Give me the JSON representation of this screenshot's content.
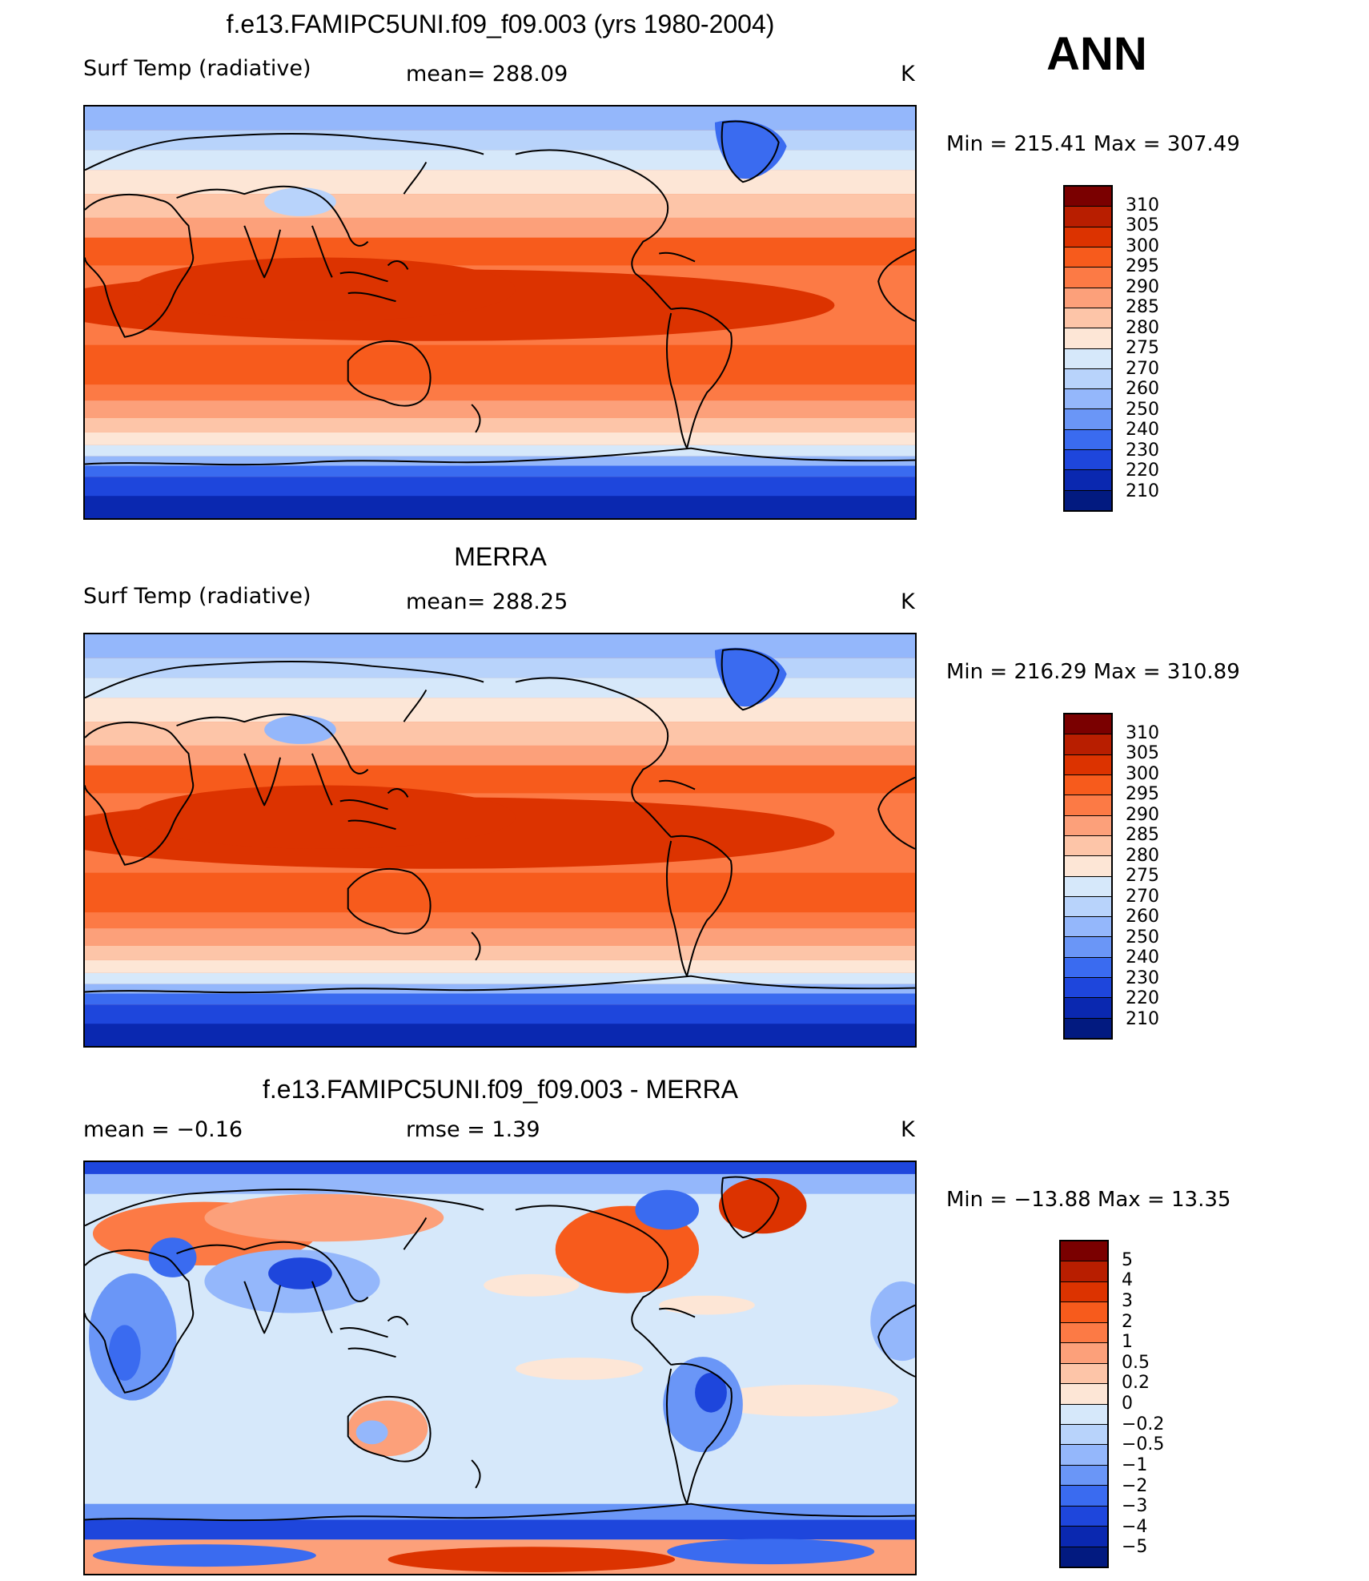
{
  "season": "ANN",
  "panels": [
    {
      "title": "f.e13.FAMIPC5UNI.f09_f09.003 (yrs 1980-2004)",
      "left_label": "Surf Temp (radiative)",
      "middle_label": "mean= 288.09",
      "units": "K",
      "minmax": "Min = 215.41 Max = 307.49",
      "levels": [
        "310",
        "305",
        "300",
        "295",
        "290",
        "285",
        "280",
        "275",
        "270",
        "260",
        "250",
        "240",
        "230",
        "220",
        "210"
      ],
      "colors": [
        "#7a0000",
        "#b81e00",
        "#dc3300",
        "#f75b1c",
        "#fc7a45",
        "#fca07a",
        "#fdc5a8",
        "#fde6d6",
        "#d6e8fa",
        "#b8d3fb",
        "#94b7fb",
        "#6a96f7",
        "#3a6bf0",
        "#1e46dc",
        "#0a28b0",
        "#021a80"
      ]
    },
    {
      "title": "MERRA",
      "left_label": "Surf Temp (radiative)",
      "middle_label": "mean= 288.25",
      "units": "K",
      "minmax": "Min = 216.29 Max = 310.89",
      "levels": [
        "310",
        "305",
        "300",
        "295",
        "290",
        "285",
        "280",
        "275",
        "270",
        "260",
        "250",
        "240",
        "230",
        "220",
        "210"
      ],
      "colors": [
        "#7a0000",
        "#b81e00",
        "#dc3300",
        "#f75b1c",
        "#fc7a45",
        "#fca07a",
        "#fdc5a8",
        "#fde6d6",
        "#d6e8fa",
        "#b8d3fb",
        "#94b7fb",
        "#6a96f7",
        "#3a6bf0",
        "#1e46dc",
        "#0a28b0",
        "#021a80"
      ]
    },
    {
      "title": "f.e13.FAMIPC5UNI.f09_f09.003 - MERRA",
      "left_label": "mean = −0.16",
      "middle_label": "rmse = 1.39",
      "units": "K",
      "minmax": "Min = −13.88 Max = 13.35",
      "levels": [
        "5",
        "4",
        "3",
        "2",
        "1",
        "0.5",
        "0.2",
        "0",
        "−0.2",
        "−0.5",
        "−1",
        "−2",
        "−3",
        "−4",
        "−5"
      ],
      "colors": [
        "#7a0000",
        "#b81e00",
        "#dc3300",
        "#f75b1c",
        "#fc7a45",
        "#fca07a",
        "#fdc5a8",
        "#fde6d6",
        "#d6e8fa",
        "#b8d3fb",
        "#94b7fb",
        "#6a96f7",
        "#3a6bf0",
        "#1e46dc",
        "#0a28b0",
        "#021a80"
      ]
    }
  ]
}
